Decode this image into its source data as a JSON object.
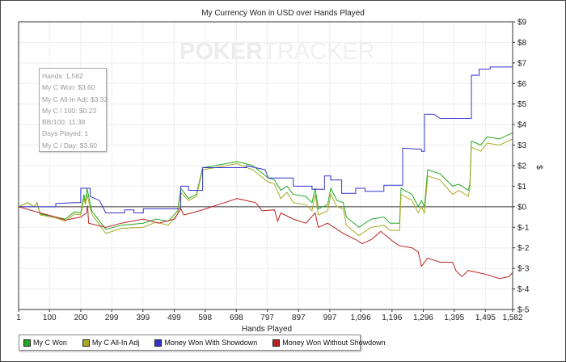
{
  "chart_data": {
    "type": "line",
    "title": "My Currency Won in USD over Hands Played",
    "xlabel": "Hands Played",
    "ylabel": "$",
    "xlim": [
      1,
      1582
    ],
    "ylim": [
      -5,
      9
    ],
    "grid": true,
    "y_axis_side": "right",
    "legend_placement": "bottom-left",
    "x_ticks": [
      1,
      100,
      200,
      299,
      399,
      499,
      598,
      698,
      797,
      897,
      997,
      1096,
      1196,
      1296,
      1395,
      1495,
      1582
    ],
    "x_tick_labels": [
      "1",
      "100",
      "200",
      "299",
      "399",
      "499",
      "598",
      "698",
      "797",
      "897",
      "997",
      "1,096",
      "1,196",
      "1,296",
      "1,395",
      "1,495",
      "1,582"
    ],
    "y_ticks": [
      9,
      8,
      7,
      6,
      5,
      4,
      3,
      2,
      1,
      0,
      -1,
      -2,
      -3,
      -4,
      -5
    ],
    "y_tick_labels": [
      "$9",
      "$8",
      "$7",
      "$6",
      "$5",
      "$4",
      "$3",
      "$2",
      "$1",
      "$0",
      "$-1",
      "$-2",
      "$-3",
      "$-4",
      "$-5"
    ],
    "series": [
      {
        "name": "My C Won",
        "color": "#22aa22",
        "points": [
          [
            1,
            0
          ],
          [
            30,
            0.2
          ],
          [
            50,
            0
          ],
          [
            60,
            0.2
          ],
          [
            70,
            -0.35
          ],
          [
            120,
            -0.5
          ],
          [
            150,
            -0.6
          ],
          [
            180,
            -0.25
          ],
          [
            200,
            -0.3
          ],
          [
            210,
            0.6
          ],
          [
            215,
            0.2
          ],
          [
            220,
            0.9
          ],
          [
            235,
            -0.2
          ],
          [
            280,
            -1.1
          ],
          [
            330,
            -0.9
          ],
          [
            400,
            -0.8
          ],
          [
            440,
            -0.6
          ],
          [
            480,
            -0.7
          ],
          [
            510,
            -0.2
          ],
          [
            520,
            0.9
          ],
          [
            545,
            0.4
          ],
          [
            570,
            0.6
          ],
          [
            590,
            1.9
          ],
          [
            630,
            2.0
          ],
          [
            700,
            2.2
          ],
          [
            750,
            2.0
          ],
          [
            800,
            1.4
          ],
          [
            820,
            1.3
          ],
          [
            840,
            0.8
          ],
          [
            860,
            1.0
          ],
          [
            880,
            0.6
          ],
          [
            920,
            0.5
          ],
          [
            940,
            0.2
          ],
          [
            950,
            0.9
          ],
          [
            960,
            -0.1
          ],
          [
            990,
            0.1
          ],
          [
            1000,
            0.9
          ],
          [
            1020,
            0.3
          ],
          [
            1040,
            0.2
          ],
          [
            1050,
            -0.5
          ],
          [
            1090,
            -1.0
          ],
          [
            1130,
            -0.6
          ],
          [
            1170,
            -0.5
          ],
          [
            1190,
            -0.8
          ],
          [
            1220,
            -0.8
          ],
          [
            1225,
            0.9
          ],
          [
            1260,
            0.6
          ],
          [
            1280,
            0.0
          ],
          [
            1290,
            0.3
          ],
          [
            1300,
            0.0
          ],
          [
            1310,
            1.8
          ],
          [
            1350,
            1.6
          ],
          [
            1390,
            1.0
          ],
          [
            1410,
            1.1
          ],
          [
            1440,
            0.8
          ],
          [
            1445,
            1.1
          ],
          [
            1450,
            3.2
          ],
          [
            1480,
            3.0
          ],
          [
            1500,
            3.4
          ],
          [
            1540,
            3.3
          ],
          [
            1582,
            3.6
          ]
        ]
      },
      {
        "name": "My C All-In Adj",
        "color": "#aaaa22",
        "points": [
          [
            1,
            0
          ],
          [
            30,
            0.2
          ],
          [
            50,
            0
          ],
          [
            60,
            0.2
          ],
          [
            70,
            -0.4
          ],
          [
            120,
            -0.55
          ],
          [
            150,
            -0.7
          ],
          [
            180,
            -0.35
          ],
          [
            200,
            -0.4
          ],
          [
            210,
            0.4
          ],
          [
            215,
            0.1
          ],
          [
            220,
            0.6
          ],
          [
            235,
            -0.35
          ],
          [
            280,
            -1.3
          ],
          [
            330,
            -1.05
          ],
          [
            400,
            -1.0
          ],
          [
            440,
            -0.75
          ],
          [
            480,
            -0.9
          ],
          [
            510,
            -0.35
          ],
          [
            520,
            0.7
          ],
          [
            545,
            0.3
          ],
          [
            570,
            0.5
          ],
          [
            590,
            1.8
          ],
          [
            630,
            1.9
          ],
          [
            700,
            2.1
          ],
          [
            750,
            1.8
          ],
          [
            800,
            1.2
          ],
          [
            820,
            1.1
          ],
          [
            840,
            0.4
          ],
          [
            860,
            0.7
          ],
          [
            880,
            0.2
          ],
          [
            920,
            0.1
          ],
          [
            940,
            -0.2
          ],
          [
            950,
            0.6
          ],
          [
            960,
            -0.4
          ],
          [
            990,
            -0.2
          ],
          [
            1000,
            0.6
          ],
          [
            1020,
            0.0
          ],
          [
            1040,
            -0.1
          ],
          [
            1050,
            -0.9
          ],
          [
            1090,
            -1.4
          ],
          [
            1130,
            -1.0
          ],
          [
            1170,
            -0.9
          ],
          [
            1190,
            -1.15
          ],
          [
            1220,
            -1.15
          ],
          [
            1225,
            0.6
          ],
          [
            1260,
            0.3
          ],
          [
            1280,
            -0.3
          ],
          [
            1290,
            0.0
          ],
          [
            1300,
            -0.3
          ],
          [
            1310,
            1.5
          ],
          [
            1350,
            1.3
          ],
          [
            1390,
            0.6
          ],
          [
            1410,
            0.8
          ],
          [
            1440,
            0.5
          ],
          [
            1445,
            0.9
          ],
          [
            1450,
            2.9
          ],
          [
            1480,
            2.7
          ],
          [
            1500,
            3.1
          ],
          [
            1540,
            3.0
          ],
          [
            1582,
            3.3
          ]
        ]
      },
      {
        "name": "Money Won With Showdown",
        "color": "#3333cc",
        "points": [
          [
            1,
            0
          ],
          [
            120,
            0
          ],
          [
            120,
            0.15
          ],
          [
            180,
            0.2
          ],
          [
            200,
            0.2
          ],
          [
            200,
            0.9
          ],
          [
            230,
            0.9
          ],
          [
            230,
            0.5
          ],
          [
            260,
            0.3
          ],
          [
            270,
            0
          ],
          [
            280,
            -0.3
          ],
          [
            340,
            -0.3
          ],
          [
            340,
            -0.15
          ],
          [
            370,
            -0.15
          ],
          [
            370,
            -0.3
          ],
          [
            400,
            -0.3
          ],
          [
            400,
            -0.1
          ],
          [
            520,
            -0.1
          ],
          [
            520,
            1.0
          ],
          [
            545,
            1.0
          ],
          [
            545,
            0.8
          ],
          [
            590,
            0.8
          ],
          [
            590,
            1.9
          ],
          [
            730,
            1.9
          ],
          [
            730,
            2.0
          ],
          [
            790,
            1.8
          ],
          [
            800,
            1.4
          ],
          [
            880,
            1.4
          ],
          [
            880,
            1.0
          ],
          [
            940,
            1.0
          ],
          [
            940,
            0.85
          ],
          [
            980,
            0.85
          ],
          [
            980,
            1.5
          ],
          [
            1000,
            1.5
          ],
          [
            1000,
            1.3
          ],
          [
            1035,
            1.3
          ],
          [
            1035,
            0.65
          ],
          [
            1080,
            0.65
          ],
          [
            1080,
            0.9
          ],
          [
            1110,
            0.9
          ],
          [
            1110,
            0.75
          ],
          [
            1170,
            0.75
          ],
          [
            1170,
            1.05
          ],
          [
            1230,
            1.05
          ],
          [
            1230,
            2.85
          ],
          [
            1290,
            2.8
          ],
          [
            1290,
            2.7
          ],
          [
            1300,
            2.7
          ],
          [
            1300,
            4.5
          ],
          [
            1330,
            4.5
          ],
          [
            1350,
            4.3
          ],
          [
            1450,
            4.3
          ],
          [
            1450,
            6.4
          ],
          [
            1475,
            6.4
          ],
          [
            1475,
            6.7
          ],
          [
            1510,
            6.7
          ],
          [
            1510,
            6.8
          ],
          [
            1582,
            6.8
          ]
        ]
      },
      {
        "name": "Money Won Without Showdown",
        "color": "#bb2222",
        "points": [
          [
            1,
            0
          ],
          [
            70,
            -0.3
          ],
          [
            120,
            -0.5
          ],
          [
            150,
            -0.65
          ],
          [
            200,
            -0.5
          ],
          [
            218,
            -0.3
          ],
          [
            222,
            0.05
          ],
          [
            225,
            -0.8
          ],
          [
            280,
            -1.0
          ],
          [
            330,
            -0.8
          ],
          [
            400,
            -0.6
          ],
          [
            450,
            -0.8
          ],
          [
            500,
            -0.6
          ],
          [
            520,
            -0.1
          ],
          [
            530,
            -0.4
          ],
          [
            580,
            -0.2
          ],
          [
            640,
            0.1
          ],
          [
            700,
            0.4
          ],
          [
            760,
            0.2
          ],
          [
            780,
            -0.2
          ],
          [
            820,
            -0.15
          ],
          [
            830,
            -0.7
          ],
          [
            840,
            -0.3
          ],
          [
            880,
            -0.6
          ],
          [
            920,
            -0.8
          ],
          [
            950,
            -0.3
          ],
          [
            960,
            -1.0
          ],
          [
            990,
            -0.8
          ],
          [
            1040,
            -1.3
          ],
          [
            1080,
            -1.6
          ],
          [
            1100,
            -1.8
          ],
          [
            1130,
            -1.6
          ],
          [
            1160,
            -1.2
          ],
          [
            1200,
            -1.7
          ],
          [
            1220,
            -1.9
          ],
          [
            1260,
            -2.0
          ],
          [
            1280,
            -2.2
          ],
          [
            1290,
            -2.9
          ],
          [
            1310,
            -2.5
          ],
          [
            1350,
            -2.7
          ],
          [
            1390,
            -2.7
          ],
          [
            1400,
            -3.1
          ],
          [
            1420,
            -3.4
          ],
          [
            1440,
            -3.1
          ],
          [
            1500,
            -3.3
          ],
          [
            1540,
            -3.5
          ],
          [
            1570,
            -3.4
          ],
          [
            1582,
            -3.2
          ]
        ]
      }
    ]
  },
  "watermark": {
    "bold": "POKER",
    "light": "TRACKER"
  },
  "tooltip": {
    "lines": [
      "Hands: 1,582",
      "My C Won: $3.60",
      "My C All-In Adj: $3.32",
      "My C / 100: $0.23",
      "BB/100: 11.38",
      "Days Played: 1",
      "My C / Day: $3.60"
    ]
  },
  "legend": [
    "My C Won",
    "My C All-In Adj",
    "Money Won With Showdown",
    "Money Won Without Showdown"
  ]
}
